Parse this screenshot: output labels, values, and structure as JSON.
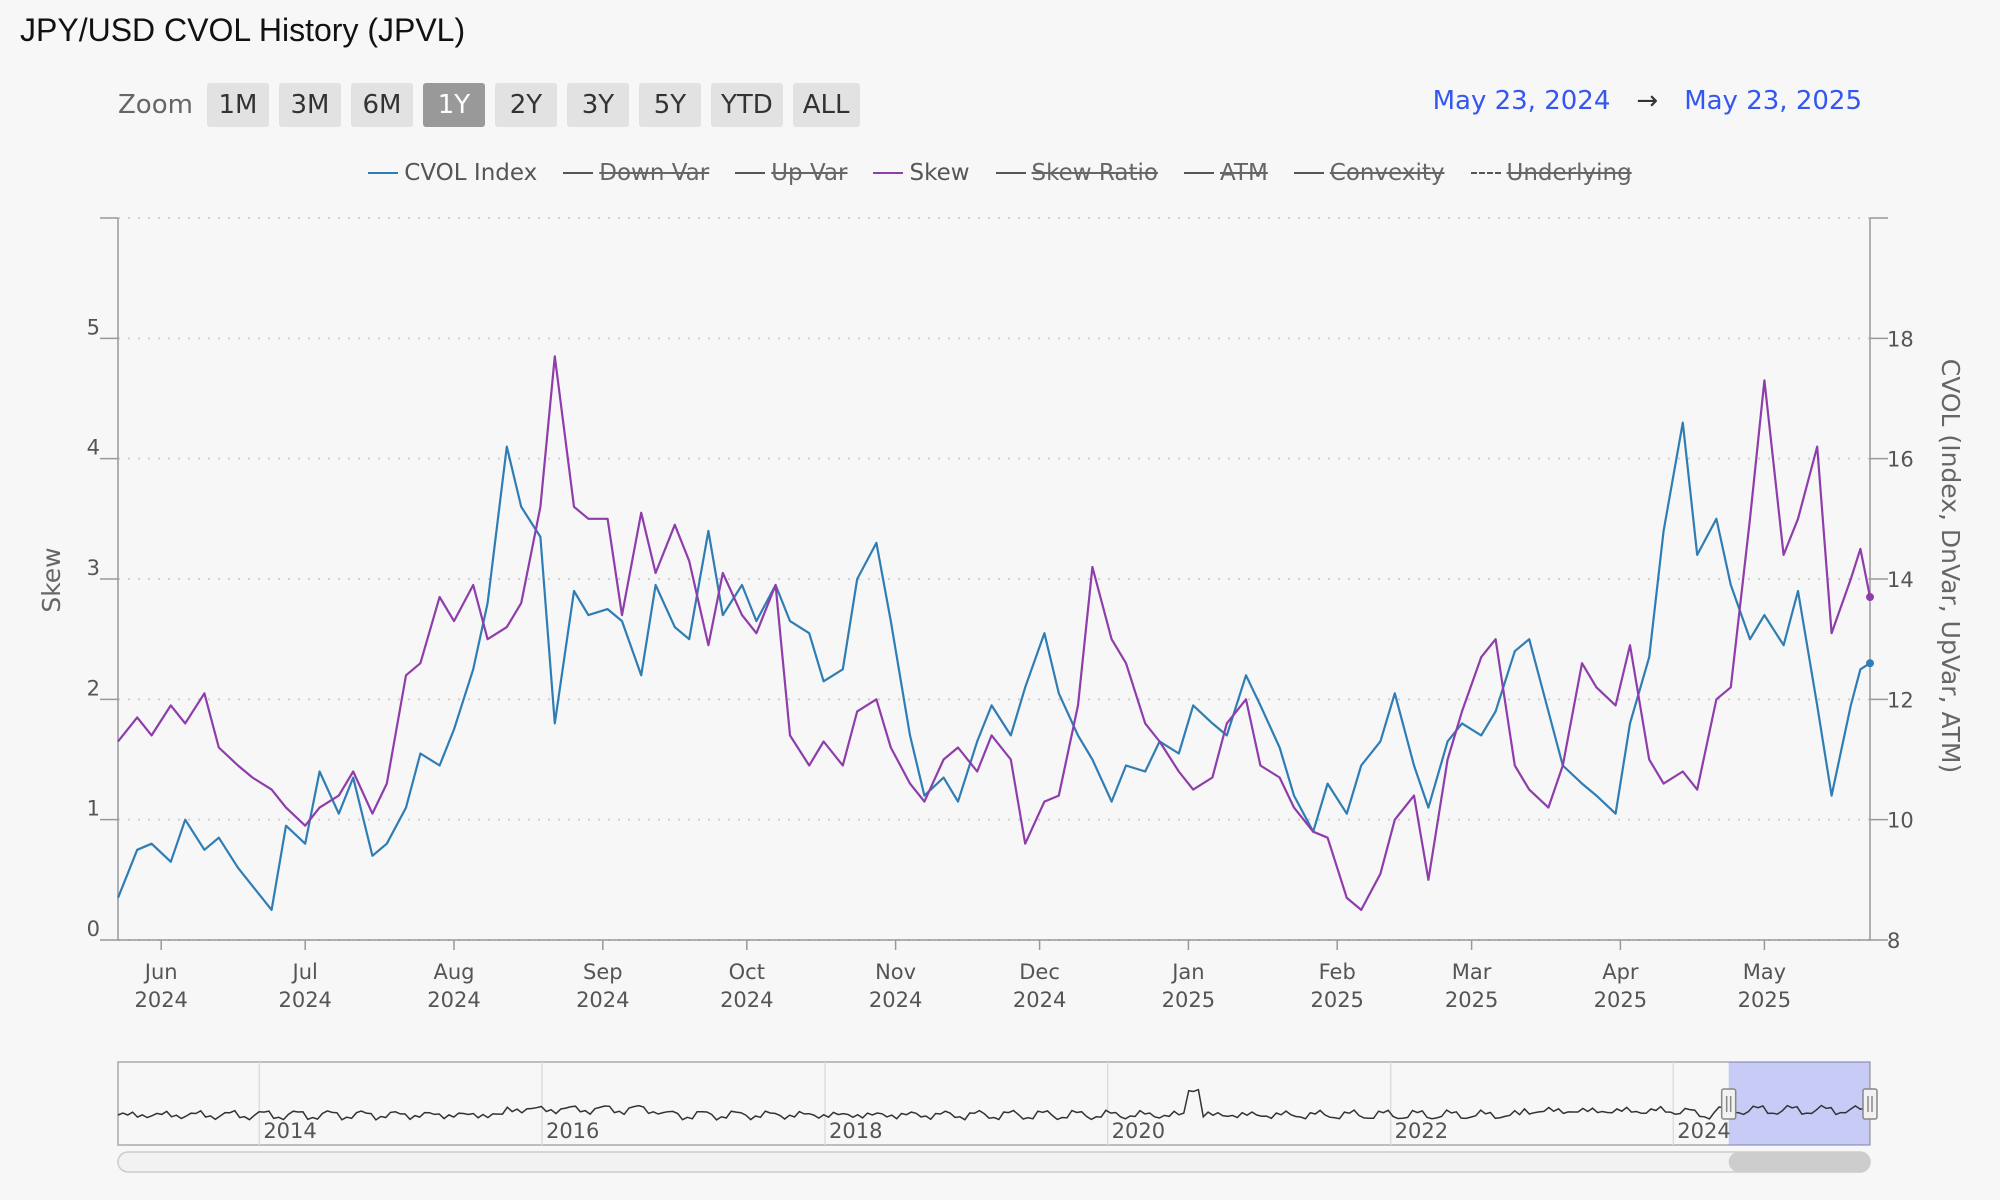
{
  "title": "JPY/USD CVOL History (JPVL)",
  "zoom": {
    "label": "Zoom",
    "buttons": [
      "1M",
      "3M",
      "6M",
      "1Y",
      "2Y",
      "3Y",
      "5Y",
      "YTD",
      "ALL"
    ],
    "active": "1Y"
  },
  "range": {
    "from": "May 23, 2024",
    "arrow": "→",
    "to": "May 23, 2025"
  },
  "legend": [
    {
      "name": "CVOL Index",
      "visible": true,
      "color": "#2f7db5",
      "dash": false
    },
    {
      "name": "Down Var",
      "visible": false,
      "color": "#555555",
      "dash": false
    },
    {
      "name": "Up Var",
      "visible": false,
      "color": "#555555",
      "dash": false
    },
    {
      "name": "Skew",
      "visible": true,
      "color": "#8e3dab",
      "dash": false
    },
    {
      "name": "Skew Ratio",
      "visible": false,
      "color": "#555555",
      "dash": false
    },
    {
      "name": "ATM",
      "visible": false,
      "color": "#555555",
      "dash": false
    },
    {
      "name": "Convexity",
      "visible": false,
      "color": "#555555",
      "dash": false
    },
    {
      "name": "Underlying",
      "visible": false,
      "color": "#555555",
      "dash": true
    }
  ],
  "chart_data": {
    "type": "line",
    "title": "JPY/USD CVOL History (JPVL)",
    "grid": true,
    "legend_position": "top-center",
    "x_range": [
      "2024-05-23",
      "2025-05-23"
    ],
    "x_ticks": [
      {
        "date": "2024-06-01",
        "label": [
          "Jun",
          "2024"
        ]
      },
      {
        "date": "2024-07-01",
        "label": [
          "Jul",
          "2024"
        ]
      },
      {
        "date": "2024-08-01",
        "label": [
          "Aug",
          "2024"
        ]
      },
      {
        "date": "2024-09-01",
        "label": [
          "Sep",
          "2024"
        ]
      },
      {
        "date": "2024-10-01",
        "label": [
          "Oct",
          "2024"
        ]
      },
      {
        "date": "2024-11-01",
        "label": [
          "Nov",
          "2024"
        ]
      },
      {
        "date": "2024-12-01",
        "label": [
          "Dec",
          "2024"
        ]
      },
      {
        "date": "2025-01-01",
        "label": [
          "Jan",
          "2025"
        ]
      },
      {
        "date": "2025-02-01",
        "label": [
          "Feb",
          "2025"
        ]
      },
      {
        "date": "2025-03-01",
        "label": [
          "Mar",
          "2025"
        ]
      },
      {
        "date": "2025-04-01",
        "label": [
          "Apr",
          "2025"
        ]
      },
      {
        "date": "2025-05-01",
        "label": [
          "May",
          "2025"
        ]
      }
    ],
    "y_left": {
      "label": "Skew",
      "range": [
        0,
        6
      ],
      "ticks": [
        0,
        1,
        2,
        3,
        4,
        5
      ]
    },
    "y_right": {
      "label": "CVOL (Index, DnVar, UpVar, ATM)",
      "range": [
        8,
        20
      ],
      "ticks": [
        8,
        10,
        12,
        14,
        16,
        18
      ]
    },
    "series": [
      {
        "name": "CVOL Index",
        "axis": "right",
        "color": "#2f7db5",
        "points": [
          [
            "2024-05-23",
            8.7
          ],
          [
            "2024-05-27",
            9.5
          ],
          [
            "2024-05-30",
            9.6
          ],
          [
            "2024-06-03",
            9.3
          ],
          [
            "2024-06-06",
            10.0
          ],
          [
            "2024-06-10",
            9.5
          ],
          [
            "2024-06-13",
            9.7
          ],
          [
            "2024-06-17",
            9.2
          ],
          [
            "2024-06-20",
            8.9
          ],
          [
            "2024-06-24",
            8.5
          ],
          [
            "2024-06-27",
            9.9
          ],
          [
            "2024-07-01",
            9.6
          ],
          [
            "2024-07-04",
            10.8
          ],
          [
            "2024-07-08",
            10.1
          ],
          [
            "2024-07-11",
            10.7
          ],
          [
            "2024-07-15",
            9.4
          ],
          [
            "2024-07-18",
            9.6
          ],
          [
            "2024-07-22",
            10.2
          ],
          [
            "2024-07-25",
            11.1
          ],
          [
            "2024-07-29",
            10.9
          ],
          [
            "2024-08-01",
            11.5
          ],
          [
            "2024-08-05",
            12.5
          ],
          [
            "2024-08-08",
            13.6
          ],
          [
            "2024-08-12",
            16.2
          ],
          [
            "2024-08-15",
            15.2
          ],
          [
            "2024-08-19",
            14.7
          ],
          [
            "2024-08-22",
            11.6
          ],
          [
            "2024-08-26",
            13.8
          ],
          [
            "2024-08-29",
            13.4
          ],
          [
            "2024-09-02",
            13.5
          ],
          [
            "2024-09-05",
            13.3
          ],
          [
            "2024-09-09",
            12.4
          ],
          [
            "2024-09-12",
            13.9
          ],
          [
            "2024-09-16",
            13.2
          ],
          [
            "2024-09-19",
            13.0
          ],
          [
            "2024-09-23",
            14.8
          ],
          [
            "2024-09-26",
            13.4
          ],
          [
            "2024-09-30",
            13.9
          ],
          [
            "2024-10-03",
            13.3
          ],
          [
            "2024-10-07",
            13.9
          ],
          [
            "2024-10-10",
            13.3
          ],
          [
            "2024-10-14",
            13.1
          ],
          [
            "2024-10-17",
            12.3
          ],
          [
            "2024-10-21",
            12.5
          ],
          [
            "2024-10-24",
            14.0
          ],
          [
            "2024-10-28",
            14.6
          ],
          [
            "2024-10-31",
            13.3
          ],
          [
            "2024-11-04",
            11.4
          ],
          [
            "2024-11-07",
            10.4
          ],
          [
            "2024-11-11",
            10.7
          ],
          [
            "2024-11-14",
            10.3
          ],
          [
            "2024-11-18",
            11.3
          ],
          [
            "2024-11-21",
            11.9
          ],
          [
            "2024-11-25",
            11.4
          ],
          [
            "2024-11-28",
            12.2
          ],
          [
            "2024-12-02",
            13.1
          ],
          [
            "2024-12-05",
            12.1
          ],
          [
            "2024-12-09",
            11.4
          ],
          [
            "2024-12-12",
            11.0
          ],
          [
            "2024-12-16",
            10.3
          ],
          [
            "2024-12-19",
            10.9
          ],
          [
            "2024-12-23",
            10.8
          ],
          [
            "2024-12-26",
            11.3
          ],
          [
            "2024-12-30",
            11.1
          ],
          [
            "2025-01-02",
            11.9
          ],
          [
            "2025-01-06",
            11.6
          ],
          [
            "2025-01-09",
            11.4
          ],
          [
            "2025-01-13",
            12.4
          ],
          [
            "2025-01-16",
            11.9
          ],
          [
            "2025-01-20",
            11.2
          ],
          [
            "2025-01-23",
            10.4
          ],
          [
            "2025-01-27",
            9.8
          ],
          [
            "2025-01-30",
            10.6
          ],
          [
            "2025-02-03",
            10.1
          ],
          [
            "2025-02-06",
            10.9
          ],
          [
            "2025-02-10",
            11.3
          ],
          [
            "2025-02-13",
            12.1
          ],
          [
            "2025-02-17",
            10.9
          ],
          [
            "2025-02-20",
            10.2
          ],
          [
            "2025-02-24",
            11.3
          ],
          [
            "2025-02-27",
            11.6
          ],
          [
            "2025-03-03",
            11.4
          ],
          [
            "2025-03-06",
            11.8
          ],
          [
            "2025-03-10",
            12.8
          ],
          [
            "2025-03-13",
            13.0
          ],
          [
            "2025-03-17",
            11.8
          ],
          [
            "2025-03-20",
            10.9
          ],
          [
            "2025-03-24",
            10.6
          ],
          [
            "2025-03-27",
            10.4
          ],
          [
            "2025-03-31",
            10.1
          ],
          [
            "2025-04-03",
            11.6
          ],
          [
            "2025-04-07",
            12.7
          ],
          [
            "2025-04-10",
            14.8
          ],
          [
            "2025-04-14",
            16.6
          ],
          [
            "2025-04-17",
            14.4
          ],
          [
            "2025-04-21",
            15.0
          ],
          [
            "2025-04-24",
            13.9
          ],
          [
            "2025-04-28",
            13.0
          ],
          [
            "2025-05-01",
            13.4
          ],
          [
            "2025-05-05",
            12.9
          ],
          [
            "2025-05-08",
            13.8
          ],
          [
            "2025-05-12",
            11.9
          ],
          [
            "2025-05-15",
            10.4
          ],
          [
            "2025-05-19",
            11.9
          ],
          [
            "2025-05-21",
            12.5
          ],
          [
            "2025-05-23",
            12.6
          ]
        ]
      },
      {
        "name": "Skew",
        "axis": "left",
        "color": "#8e3dab",
        "points": [
          [
            "2024-05-23",
            1.65
          ],
          [
            "2024-05-27",
            1.85
          ],
          [
            "2024-05-30",
            1.7
          ],
          [
            "2024-06-03",
            1.95
          ],
          [
            "2024-06-06",
            1.8
          ],
          [
            "2024-06-10",
            2.05
          ],
          [
            "2024-06-13",
            1.6
          ],
          [
            "2024-06-17",
            1.45
          ],
          [
            "2024-06-20",
            1.35
          ],
          [
            "2024-06-24",
            1.25
          ],
          [
            "2024-06-27",
            1.1
          ],
          [
            "2024-07-01",
            0.95
          ],
          [
            "2024-07-04",
            1.1
          ],
          [
            "2024-07-08",
            1.2
          ],
          [
            "2024-07-11",
            1.4
          ],
          [
            "2024-07-15",
            1.05
          ],
          [
            "2024-07-18",
            1.3
          ],
          [
            "2024-07-22",
            2.2
          ],
          [
            "2024-07-25",
            2.3
          ],
          [
            "2024-07-29",
            2.85
          ],
          [
            "2024-08-01",
            2.65
          ],
          [
            "2024-08-05",
            2.95
          ],
          [
            "2024-08-08",
            2.5
          ],
          [
            "2024-08-12",
            2.6
          ],
          [
            "2024-08-15",
            2.8
          ],
          [
            "2024-08-19",
            3.6
          ],
          [
            "2024-08-22",
            4.85
          ],
          [
            "2024-08-26",
            3.6
          ],
          [
            "2024-08-29",
            3.5
          ],
          [
            "2024-09-02",
            3.5
          ],
          [
            "2024-09-05",
            2.7
          ],
          [
            "2024-09-09",
            3.55
          ],
          [
            "2024-09-12",
            3.05
          ],
          [
            "2024-09-16",
            3.45
          ],
          [
            "2024-09-19",
            3.15
          ],
          [
            "2024-09-23",
            2.45
          ],
          [
            "2024-09-26",
            3.05
          ],
          [
            "2024-09-30",
            2.7
          ],
          [
            "2024-10-03",
            2.55
          ],
          [
            "2024-10-07",
            2.95
          ],
          [
            "2024-10-10",
            1.7
          ],
          [
            "2024-10-14",
            1.45
          ],
          [
            "2024-10-17",
            1.65
          ],
          [
            "2024-10-21",
            1.45
          ],
          [
            "2024-10-24",
            1.9
          ],
          [
            "2024-10-28",
            2.0
          ],
          [
            "2024-10-31",
            1.6
          ],
          [
            "2024-11-04",
            1.3
          ],
          [
            "2024-11-07",
            1.15
          ],
          [
            "2024-11-11",
            1.5
          ],
          [
            "2024-11-14",
            1.6
          ],
          [
            "2024-11-18",
            1.4
          ],
          [
            "2024-11-21",
            1.7
          ],
          [
            "2024-11-25",
            1.5
          ],
          [
            "2024-11-28",
            0.8
          ],
          [
            "2024-12-02",
            1.15
          ],
          [
            "2024-12-05",
            1.2
          ],
          [
            "2024-12-09",
            1.95
          ],
          [
            "2024-12-12",
            3.1
          ],
          [
            "2024-12-16",
            2.5
          ],
          [
            "2024-12-19",
            2.3
          ],
          [
            "2024-12-23",
            1.8
          ],
          [
            "2024-12-26",
            1.65
          ],
          [
            "2024-12-30",
            1.4
          ],
          [
            "2025-01-02",
            1.25
          ],
          [
            "2025-01-06",
            1.35
          ],
          [
            "2025-01-09",
            1.8
          ],
          [
            "2025-01-13",
            2.0
          ],
          [
            "2025-01-16",
            1.45
          ],
          [
            "2025-01-20",
            1.35
          ],
          [
            "2025-01-23",
            1.1
          ],
          [
            "2025-01-27",
            0.9
          ],
          [
            "2025-01-30",
            0.85
          ],
          [
            "2025-02-03",
            0.35
          ],
          [
            "2025-02-06",
            0.25
          ],
          [
            "2025-02-10",
            0.55
          ],
          [
            "2025-02-13",
            1.0
          ],
          [
            "2025-02-17",
            1.2
          ],
          [
            "2025-02-20",
            0.5
          ],
          [
            "2025-02-24",
            1.5
          ],
          [
            "2025-02-27",
            1.9
          ],
          [
            "2025-03-03",
            2.35
          ],
          [
            "2025-03-06",
            2.5
          ],
          [
            "2025-03-10",
            1.45
          ],
          [
            "2025-03-13",
            1.25
          ],
          [
            "2025-03-17",
            1.1
          ],
          [
            "2025-03-20",
            1.45
          ],
          [
            "2025-03-24",
            2.3
          ],
          [
            "2025-03-27",
            2.1
          ],
          [
            "2025-03-31",
            1.95
          ],
          [
            "2025-04-03",
            2.45
          ],
          [
            "2025-04-07",
            1.5
          ],
          [
            "2025-04-10",
            1.3
          ],
          [
            "2025-04-14",
            1.4
          ],
          [
            "2025-04-17",
            1.25
          ],
          [
            "2025-04-21",
            2.0
          ],
          [
            "2025-04-24",
            2.1
          ],
          [
            "2025-04-28",
            3.5
          ],
          [
            "2025-05-01",
            4.65
          ],
          [
            "2025-05-05",
            3.2
          ],
          [
            "2025-05-08",
            3.5
          ],
          [
            "2025-05-12",
            4.1
          ],
          [
            "2025-05-15",
            2.55
          ],
          [
            "2025-05-19",
            3.0
          ],
          [
            "2025-05-21",
            3.25
          ],
          [
            "2025-05-23",
            2.85
          ]
        ]
      }
    ]
  },
  "navigator": {
    "year_labels": [
      "2014",
      "2016",
      "2018",
      "2020",
      "2022",
      "2024"
    ],
    "x_range": [
      "2013-01-01",
      "2025-05-23"
    ],
    "selection": [
      "2024-05-23",
      "2025-05-23"
    ]
  }
}
